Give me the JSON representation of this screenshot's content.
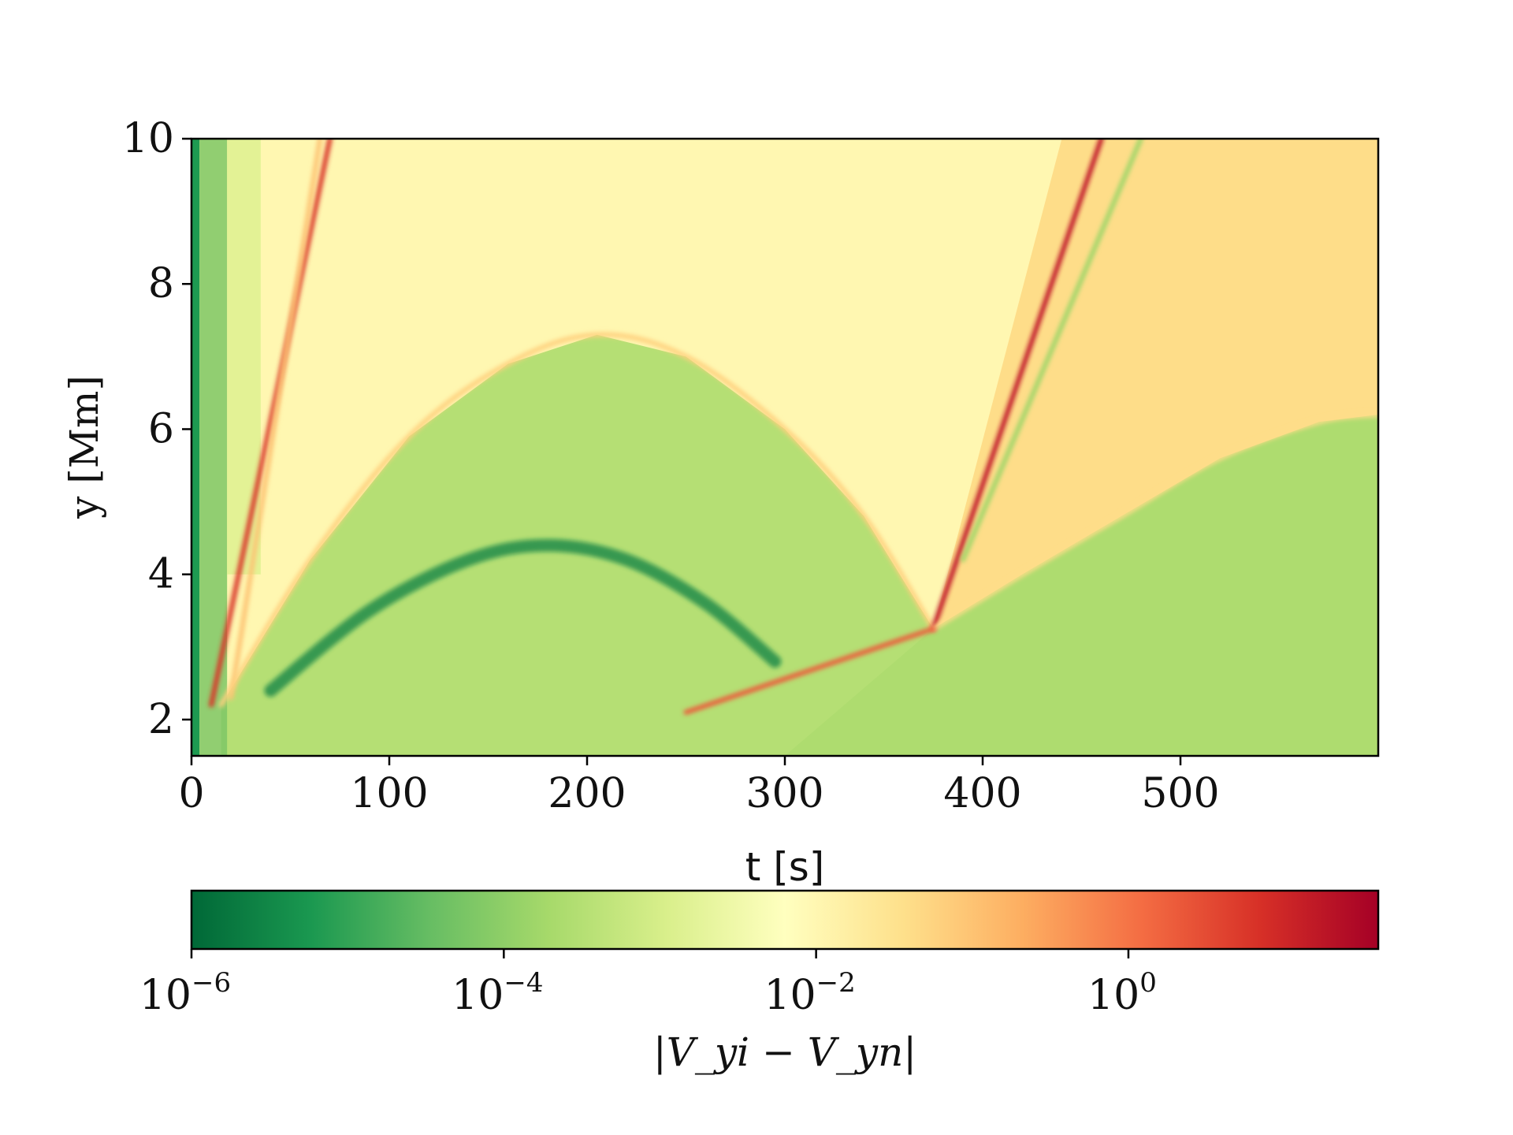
{
  "chart_data": {
    "type": "heatmap",
    "title": "",
    "xlabel": "t [s]",
    "ylabel": "y [Mm]",
    "xlim": [
      0,
      600
    ],
    "ylim": [
      1.5,
      10
    ],
    "xticks": [
      0,
      100,
      200,
      300,
      400,
      500
    ],
    "yticks": [
      2,
      4,
      6,
      8,
      10
    ],
    "x_tick_labels": [
      "0",
      "100",
      "200",
      "300",
      "400",
      "500"
    ],
    "y_tick_labels": [
      "2",
      "4",
      "6",
      "8",
      "10"
    ],
    "colorbar": {
      "label": "|V_yi − V_yn|",
      "scale": "log",
      "range_exponent": [
        -6,
        1.6
      ],
      "tick_exponents": [
        -6,
        -4,
        -2,
        0
      ],
      "tick_base": "10",
      "tick_labels": [
        "10^-6",
        "10^-4",
        "10^-2",
        "10^0"
      ],
      "colormap": [
        "#006837",
        "#1a9850",
        "#66bd63",
        "#a6d96a",
        "#d9ef8b",
        "#ffffbf",
        "#fee08b",
        "#fdae61",
        "#f46d43",
        "#d73027",
        "#a50026"
      ]
    },
    "background_levels_log10": {
      "upper_left_region": -2.0,
      "upper_right_region": -1.4,
      "inner_arch_region": -3.5,
      "lower_right_region": -3.6,
      "left_edge_strip": -5.2
    },
    "features": [
      {
        "name": "fast front 1",
        "kind": "line",
        "x": [
          10,
          70
        ],
        "y": [
          2.2,
          10
        ],
        "log10": 0.8
      },
      {
        "name": "fast front 2",
        "kind": "line",
        "x": [
          20,
          65
        ],
        "y": [
          2.3,
          10
        ],
        "log10": -1.0
      },
      {
        "name": "arch front",
        "kind": "curve",
        "x": [
          15,
          60,
          110,
          160,
          205,
          250,
          300,
          340,
          375
        ],
        "y": [
          2.2,
          4.2,
          5.9,
          6.9,
          7.3,
          7.0,
          6.0,
          4.8,
          3.25
        ],
        "log10": -1.2
      },
      {
        "name": "inner arch band",
        "kind": "curve",
        "x": [
          40,
          90,
          140,
          180,
          220,
          260,
          295
        ],
        "y": [
          2.4,
          3.5,
          4.2,
          4.4,
          4.2,
          3.6,
          2.8
        ],
        "log10": -5.6
      },
      {
        "name": "steep front after 375 s",
        "kind": "line",
        "x": [
          375,
          460
        ],
        "y": [
          3.25,
          10
        ],
        "log10": 1.2
      },
      {
        "name": "second front after 375 s",
        "kind": "line",
        "x": [
          390,
          480
        ],
        "y": [
          4.2,
          10
        ],
        "log10": -3.8
      },
      {
        "name": "rising front after 375 s",
        "kind": "curve",
        "x": [
          375,
          420,
          470,
          520,
          570,
          600
        ],
        "y": [
          3.25,
          4.0,
          4.8,
          5.6,
          6.1,
          6.2
        ],
        "log10": -1.4
      },
      {
        "name": "lower diagonal",
        "kind": "line",
        "x": [
          250,
          375
        ],
        "y": [
          2.1,
          3.25
        ],
        "log10": 0.3
      }
    ]
  }
}
